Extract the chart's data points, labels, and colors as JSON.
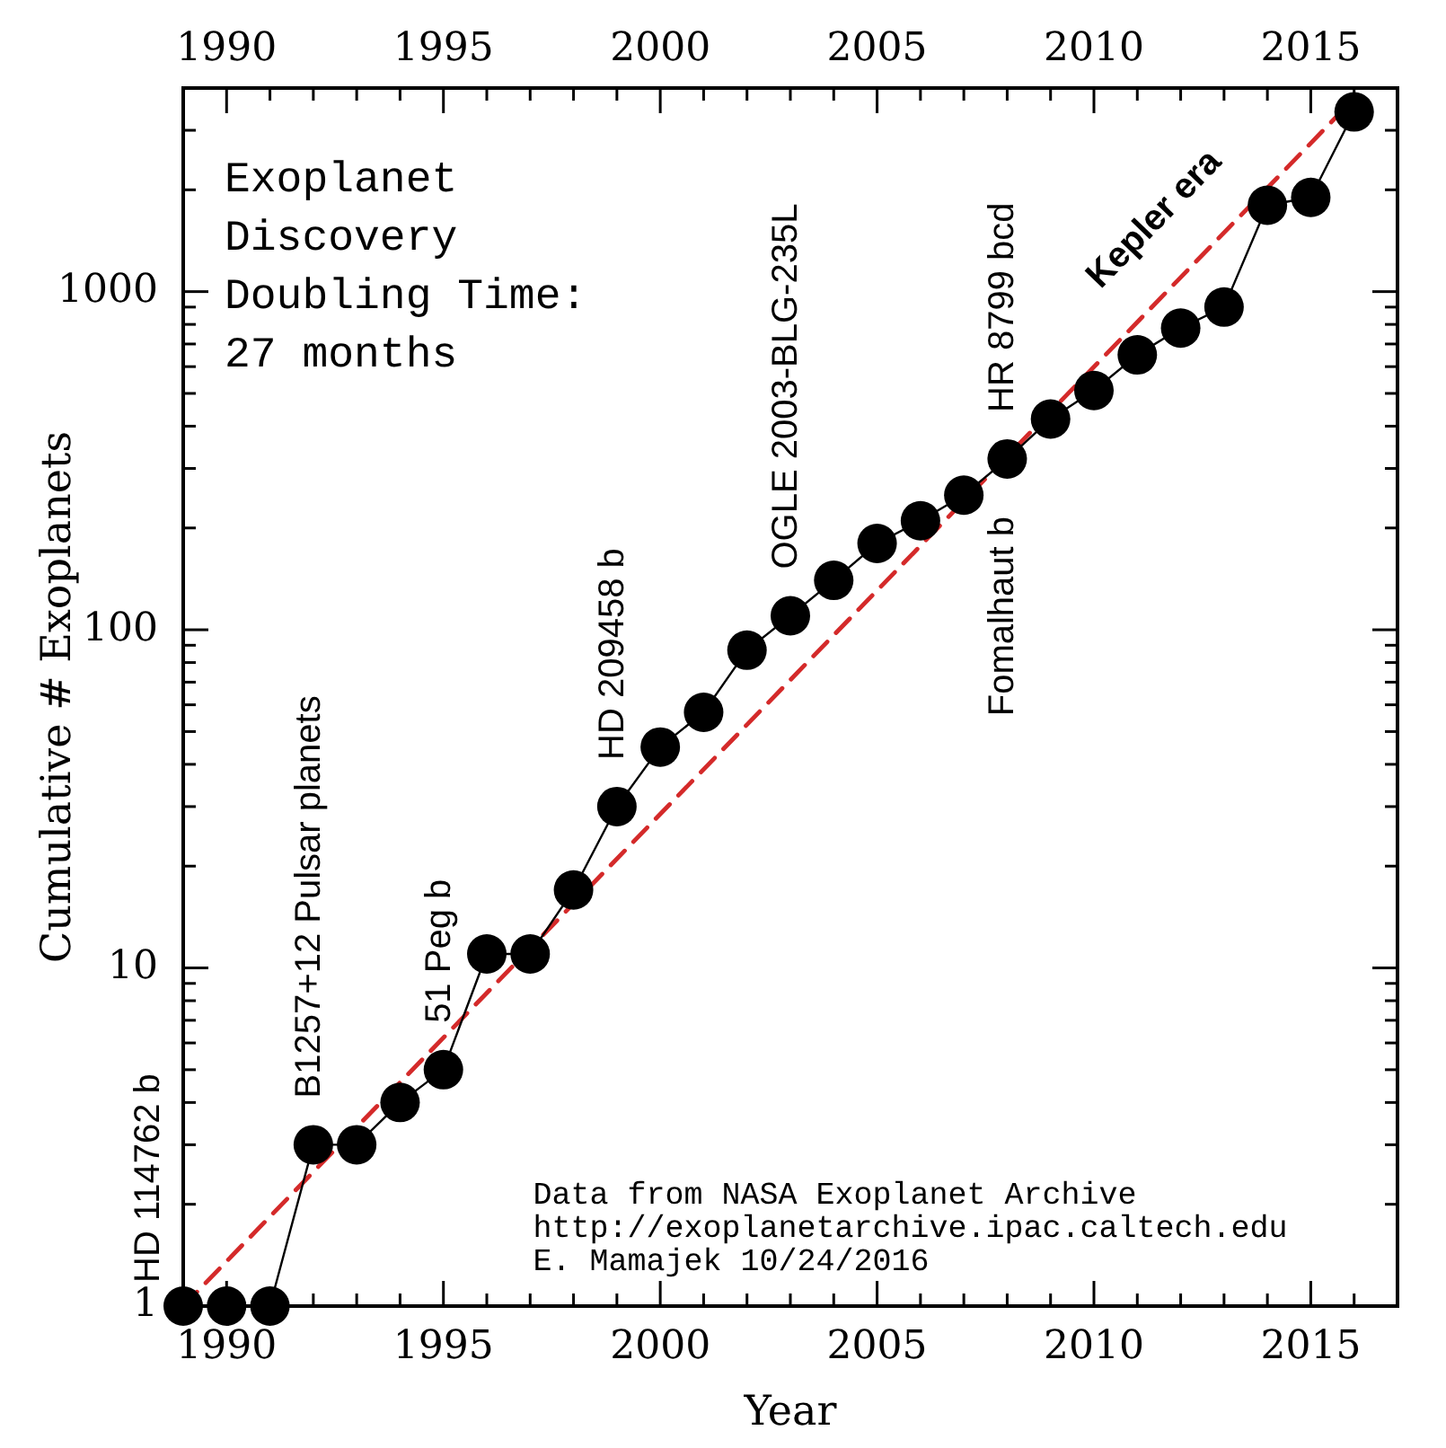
{
  "chart_data": {
    "type": "line",
    "title": "Exoplanet Discovery Doubling Time: 27 months",
    "xlabel": "Year",
    "ylabel": "Cumulative # Exoplanets",
    "x": [
      1989,
      1990,
      1991,
      1992,
      1993,
      1994,
      1995,
      1996,
      1997,
      1998,
      1999,
      2000,
      2001,
      2002,
      2003,
      2004,
      2005,
      2006,
      2007,
      2008,
      2009,
      2010,
      2011,
      2012,
      2013,
      2014,
      2015,
      2016
    ],
    "series": [
      {
        "color": "#000000",
        "values": [
          1,
          1,
          1,
          3,
          3,
          4,
          5,
          11,
          11,
          17,
          30,
          45,
          57,
          87,
          110,
          140,
          180,
          210,
          250,
          320,
          420,
          510,
          650,
          780,
          900,
          1800,
          1900,
          3400
        ]
      },
      {
        "type": "line",
        "x": [
          1989,
          2015.7
        ],
        "values": [
          1,
          3400
        ],
        "color": "#d42a2a",
        "line_style": "dashed",
        "marker": "none"
      }
    ],
    "marker": "circle",
    "log": "y",
    "xlim": [
      1989,
      2017
    ],
    "xticks": [
      1990,
      {
        "value": 1991,
        "label": null
      },
      {
        "value": 1992,
        "label": null
      },
      {
        "value": 1993,
        "label": null
      },
      {
        "value": 1994,
        "label": null
      },
      1995,
      {
        "value": 1996,
        "label": null
      },
      {
        "value": 1997,
        "label": null
      },
      {
        "value": 1998,
        "label": null
      },
      {
        "value": 1999,
        "label": null
      },
      2000,
      {
        "value": 2001,
        "label": null
      },
      {
        "value": 2002,
        "label": null
      },
      {
        "value": 2003,
        "label": null
      },
      {
        "value": 2004,
        "label": null
      },
      2005,
      {
        "value": 2006,
        "label": null
      },
      {
        "value": 2007,
        "label": null
      },
      {
        "value": 2008,
        "label": null
      },
      {
        "value": 2009,
        "label": null
      },
      2010,
      {
        "value": 2011,
        "label": null
      },
      {
        "value": 2012,
        "label": null
      },
      {
        "value": 2013,
        "label": null
      },
      {
        "value": 2014,
        "label": null
      },
      2015,
      {
        "value": 2016,
        "label": null
      }
    ],
    "x2lim": [
      1989,
      2017
    ],
    "x2ticks": [
      1990,
      {
        "value": 1991,
        "label": null
      },
      {
        "value": 1992,
        "label": null
      },
      {
        "value": 1993,
        "label": null
      },
      {
        "value": 1994,
        "label": null
      },
      1995,
      {
        "value": 1996,
        "label": null
      },
      {
        "value": 1997,
        "label": null
      },
      {
        "value": 1998,
        "label": null
      },
      {
        "value": 1999,
        "label": null
      },
      2000,
      {
        "value": 2001,
        "label": null
      },
      {
        "value": 2002,
        "label": null
      },
      {
        "value": 2003,
        "label": null
      },
      {
        "value": 2004,
        "label": null
      },
      2005,
      {
        "value": 2006,
        "label": null
      },
      {
        "value": 2007,
        "label": null
      },
      {
        "value": 2008,
        "label": null
      },
      {
        "value": 2009,
        "label": null
      },
      2010,
      {
        "value": 2011,
        "label": null
      },
      {
        "value": 2012,
        "label": null
      },
      {
        "value": 2013,
        "label": null
      },
      {
        "value": 2014,
        "label": null
      },
      2015,
      {
        "value": 2016,
        "label": null
      }
    ],
    "ylim": [
      1,
      4000
    ],
    "yticks": [
      1,
      {
        "value": 2,
        "label": null
      },
      {
        "value": 3,
        "label": null
      },
      {
        "value": 4,
        "label": null
      },
      {
        "value": 5,
        "label": null
      },
      {
        "value": 6,
        "label": null
      },
      {
        "value": 7,
        "label": null
      },
      {
        "value": 8,
        "label": null
      },
      {
        "value": 9,
        "label": null
      },
      10,
      {
        "value": 20,
        "label": null
      },
      {
        "value": 30,
        "label": null
      },
      {
        "value": 40,
        "label": null
      },
      {
        "value": 50,
        "label": null
      },
      {
        "value": 60,
        "label": null
      },
      {
        "value": 70,
        "label": null
      },
      {
        "value": 80,
        "label": null
      },
      {
        "value": 90,
        "label": null
      },
      100,
      {
        "value": 200,
        "label": null
      },
      {
        "value": 300,
        "label": null
      },
      {
        "value": 400,
        "label": null
      },
      {
        "value": 500,
        "label": null
      },
      {
        "value": 600,
        "label": null
      },
      {
        "value": 700,
        "label": null
      },
      {
        "value": 800,
        "label": null
      },
      {
        "value": 900,
        "label": null
      },
      1000,
      {
        "value": 2000,
        "label": null
      },
      {
        "value": 3000,
        "label": null
      }
    ],
    "annotations": [
      {
        "text": "HD 114762 b",
        "x": 1989,
        "y": 1
      },
      {
        "text": "B1257+12 Pulsar planets",
        "x": 1992,
        "y": 3
      },
      {
        "text": "51 Peg b",
        "x": 1995,
        "y": 5
      },
      {
        "text": "HD 209458 b",
        "x": 1999,
        "y": 30
      },
      {
        "text": "OGLE 2003-BLG-235L",
        "x": 2003,
        "y": 110
      },
      {
        "text": "HR 8799 bcd",
        "x": 2008,
        "y": 320
      },
      {
        "text": "Fomalhaut b",
        "x": 2008,
        "y": 320
      },
      "Kepler era",
      "Data from NASA Exoplanet Archive",
      "http://exoplanetarchive.ipac.caltech.edu",
      "E. Mamajek 10/24/2016"
    ]
  }
}
